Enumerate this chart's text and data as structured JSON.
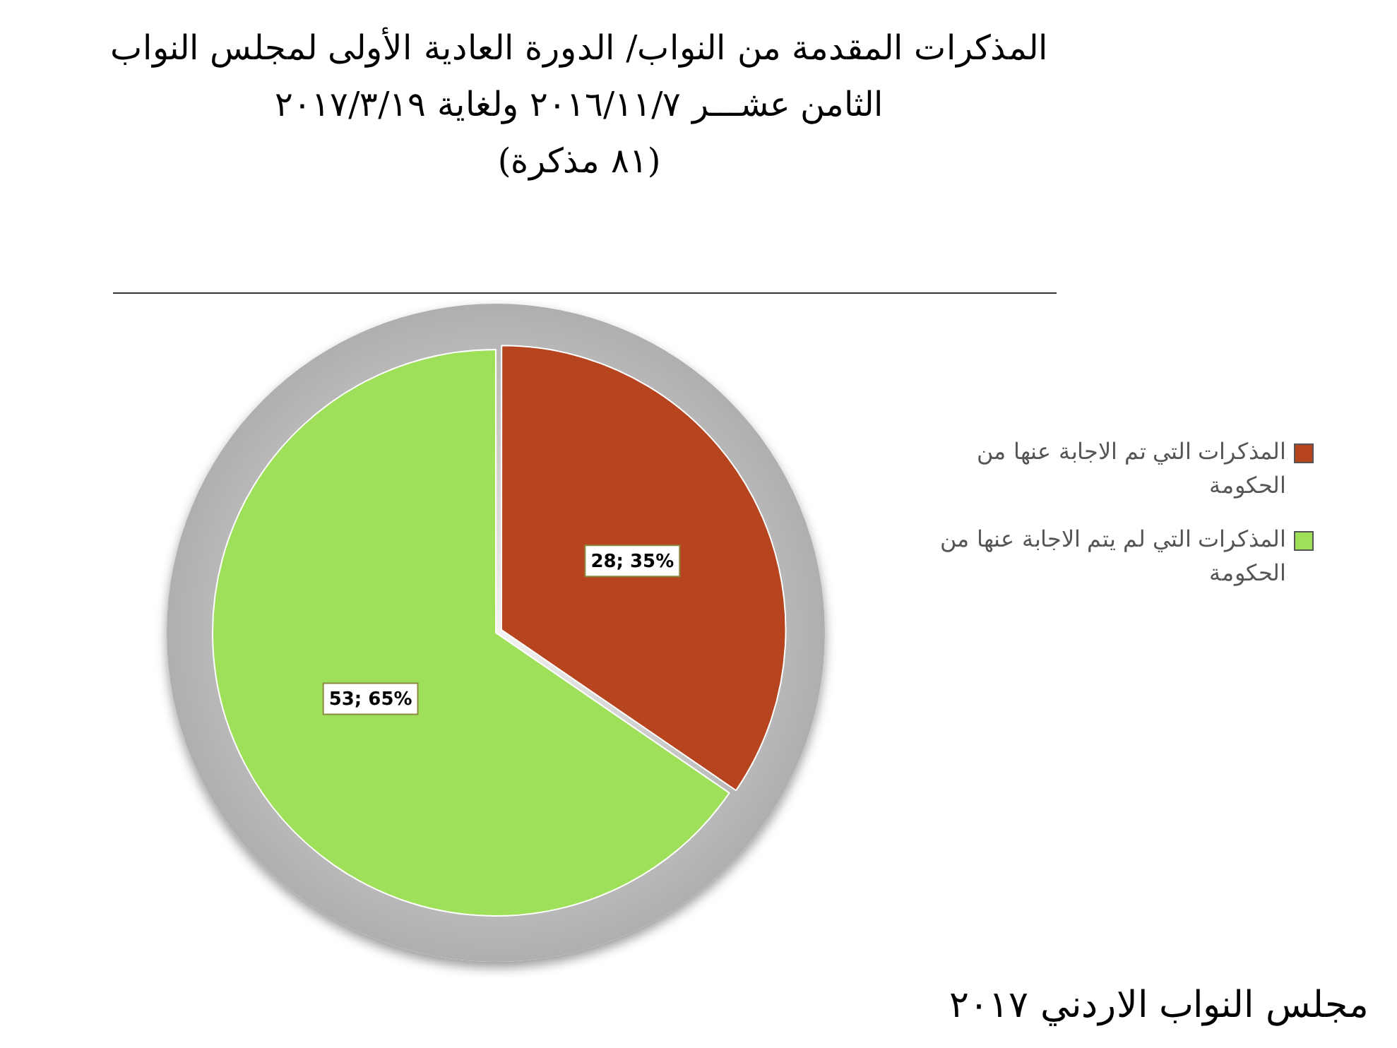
{
  "chart_data": {
    "type": "pie",
    "title": "المذكرات المقدمة من النواب/ الدورة العادية الأولى لمجلس النواب الثامن عشـــر ٢٠١٦/١١/٧ ولغاية ٢٠١٧/٣/١٩",
    "subtitle": "(٨١ مذكرة)",
    "categories": [
      "المذكرات التي تم الاجابة عنها من الحكومة",
      "المذكرات التي لم يتم الاجابة عنها من الحكومة"
    ],
    "values": [
      28,
      53
    ],
    "value_labels": [
      "28; 35%",
      "53; 65%"
    ],
    "colors": [
      "#b5441f",
      "#9fe05a"
    ],
    "legend": "right",
    "annotations": [
      "مجلس النواب الاردني ٢٠١٧"
    ]
  }
}
